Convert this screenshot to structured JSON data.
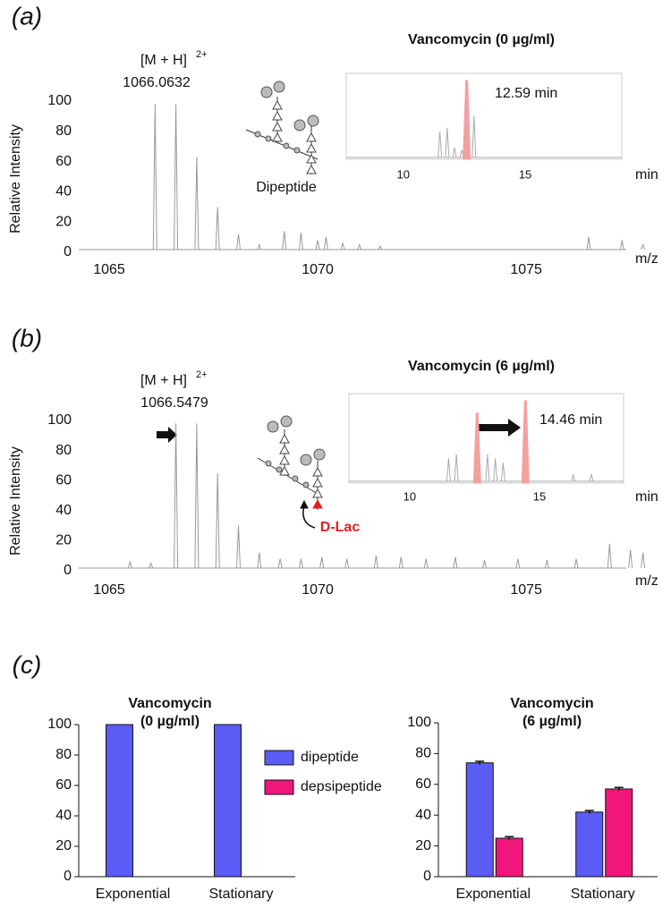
{
  "chart_data": [
    {
      "type": "spectrum",
      "panel": "(a)",
      "ylabel": "Relative Intensity",
      "xlabel": "m/z",
      "ion_label": "[M + H]",
      "ion_charge": "2+",
      "mz_label": "1066.0632",
      "structure_label": "Dipeptide",
      "x": [
        1066.1,
        1066.6,
        1067.1,
        1067.6,
        1068.1,
        1068.6,
        1069.2,
        1069.6,
        1070.0,
        1070.2,
        1070.6,
        1071.0,
        1071.5,
        1076.5,
        1077.3,
        1077.8
      ],
      "values": [
        98,
        98,
        63,
        30,
        12,
        5,
        14,
        13,
        8,
        10,
        6,
        5,
        4,
        10,
        8,
        5
      ],
      "color": "#999999",
      "xlim": [
        1064.27,
        1077.4
      ],
      "xticks": [
        1065,
        1070,
        1075
      ],
      "ylim": [
        0,
        100
      ],
      "yticks": [
        0,
        20,
        40,
        60,
        80,
        100
      ]
    },
    {
      "type": "chromatogram",
      "title": "Vancomycin (0 µg/ml)",
      "xlabel": "min",
      "peak_label": "12.59 min",
      "x": [
        11.5,
        11.8,
        12.1,
        12.4,
        12.6,
        12.9
      ],
      "values": [
        35,
        40,
        15,
        12,
        100,
        55
      ],
      "highlight": [
        4
      ],
      "color": "#aaaaaa",
      "highlight_color": "#f4a0a0",
      "xlim": [
        7.66,
        18.96
      ],
      "xticks": [
        10,
        15
      ],
      "ylim": [
        0,
        100
      ]
    },
    {
      "type": "spectrum",
      "panel": "(b)",
      "ylabel": "Relative Intensity",
      "xlabel": "m/z",
      "ion_label": "[M + H]",
      "ion_charge": "2+",
      "mz_label": "1066.5479",
      "structure_label": "D-Lac",
      "x": [
        1065.5,
        1066.0,
        1066.6,
        1067.1,
        1067.6,
        1068.1,
        1068.6,
        1069.1,
        1069.6,
        1070.1,
        1070.7,
        1071.4,
        1072.0,
        1072.6,
        1073.3,
        1074.0,
        1074.8,
        1075.5,
        1076.2,
        1077.0,
        1077.5,
        1077.8
      ],
      "values": [
        6,
        5,
        98,
        98,
        65,
        30,
        12,
        8,
        8,
        9,
        8,
        10,
        9,
        8,
        9,
        7,
        8,
        7,
        8,
        18,
        14,
        12
      ],
      "color": "#999999",
      "xlim": [
        1064.27,
        1077.4
      ],
      "xticks": [
        1065,
        1070,
        1075
      ],
      "ylim": [
        0,
        100
      ],
      "yticks": [
        0,
        20,
        40,
        60,
        80,
        100
      ]
    },
    {
      "type": "chromatogram",
      "title": "Vancomycin (6 µg/ml)",
      "xlabel": "min",
      "peak_label": "14.46 min",
      "x": [
        11.5,
        11.8,
        12.6,
        13.0,
        13.3,
        13.6,
        14.46,
        16.3,
        17.0
      ],
      "values": [
        30,
        35,
        85,
        35,
        30,
        25,
        100,
        10,
        10
      ],
      "highlight": [
        2,
        6
      ],
      "color": "#aaaaaa",
      "highlight_color": "#f4a0a0",
      "xlim": [
        7.66,
        18.24
      ],
      "xticks": [
        10,
        15
      ],
      "ylim": [
        0,
        100
      ]
    },
    {
      "type": "bar",
      "panel": "(c)",
      "title": "Vancomycin",
      "subtitle": "(0 µg/ml)",
      "categories": [
        "Exponential",
        "Stationary"
      ],
      "series": [
        {
          "name": "dipeptide",
          "color": "#5b5bf5",
          "values": [
            100,
            100
          ]
        },
        {
          "name": "depsipeptide",
          "color": "#f0167a",
          "values": [
            0,
            0
          ]
        }
      ],
      "legend": "right",
      "ylim": [
        0,
        100
      ],
      "yticks": [
        0,
        20,
        40,
        60,
        80,
        100
      ]
    },
    {
      "type": "bar",
      "title": "Vancomycin",
      "subtitle": "(6 µg/ml)",
      "categories": [
        "Exponential",
        "Stationary"
      ],
      "series": [
        {
          "name": "dipeptide",
          "color": "#5b5bf5",
          "values": [
            74,
            42
          ],
          "errors": [
            1,
            1
          ]
        },
        {
          "name": "depsipeptide",
          "color": "#f0167a",
          "values": [
            25,
            57
          ],
          "errors": [
            1,
            1
          ]
        }
      ],
      "ylim": [
        0,
        100
      ],
      "yticks": [
        0,
        20,
        40,
        60,
        80,
        100
      ]
    }
  ]
}
